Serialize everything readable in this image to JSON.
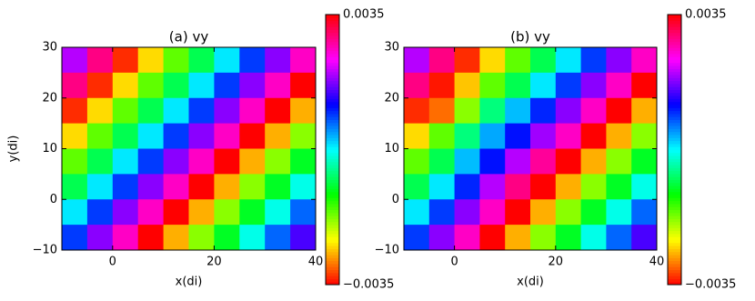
{
  "chart_data": [
    {
      "type": "heatmap",
      "title": "(a) vy",
      "xlabel": "x(di)",
      "ylabel": "y(di)",
      "x": [
        -7.5,
        -2.5,
        2.5,
        7.5,
        12.5,
        17.5,
        22.5,
        27.5,
        32.5,
        37.5
      ],
      "y": [
        27.5,
        22.5,
        17.5,
        12.5,
        7.5,
        2.5,
        -2.5,
        -7.5
      ],
      "values": [
        [
          0.002,
          0.0029,
          -0.0033,
          -0.0025,
          -0.0016,
          -0.0008,
          0.0001,
          0.0009,
          0.0018,
          0.0026
        ],
        [
          0.0029,
          -0.0033,
          -0.0025,
          -0.0016,
          -0.0008,
          0.0001,
          0.0009,
          0.0018,
          0.0026,
          0.0035
        ],
        [
          -0.0033,
          -0.0025,
          -0.0016,
          -0.0008,
          0.0001,
          0.0009,
          0.0018,
          0.0026,
          0.0035,
          -0.0027
        ],
        [
          -0.0025,
          -0.0016,
          -0.0008,
          0.0001,
          0.0009,
          0.0018,
          0.0026,
          0.0035,
          -0.0027,
          -0.0018
        ],
        [
          -0.0016,
          -0.0008,
          0.0001,
          0.0009,
          0.0018,
          0.0026,
          0.0035,
          -0.0027,
          -0.0018,
          -0.001
        ],
        [
          -0.0008,
          0.0001,
          0.0009,
          0.0018,
          0.0026,
          0.0035,
          -0.0027,
          -0.0018,
          -0.001,
          -0.0001
        ],
        [
          0.0001,
          0.0009,
          0.0018,
          0.0026,
          0.0035,
          -0.0027,
          -0.0018,
          -0.001,
          -0.0001,
          0.0007
        ],
        [
          0.0009,
          0.0018,
          0.0026,
          0.0035,
          -0.0027,
          -0.0018,
          -0.001,
          -0.0001,
          0.0007,
          0.0015
        ]
      ],
      "xlim": [
        -10,
        40
      ],
      "ylim": [
        -10,
        30
      ],
      "xticks": [
        0,
        20,
        40
      ],
      "yticks": [
        {
          "value": -10,
          "label": "−10"
        },
        0,
        10,
        20,
        30
      ],
      "clim": [
        -0.0035,
        0.0035
      ],
      "cticks": [
        {
          "value": -0.0035,
          "label": "−0.0035"
        },
        0.0035
      ],
      "colormap": "hsv"
    },
    {
      "type": "heatmap",
      "title": "(b) vy",
      "xlabel": "x(di)",
      "x": [
        -7.5,
        -2.5,
        2.5,
        7.5,
        12.5,
        17.5,
        22.5,
        27.5,
        32.5,
        37.5
      ],
      "y": [
        27.5,
        22.5,
        17.5,
        12.5,
        7.5,
        2.5,
        -2.5,
        -7.5
      ],
      "values": [
        [
          0.002,
          0.0029,
          -0.0033,
          -0.0025,
          -0.0016,
          -0.0008,
          0.0001,
          0.0009,
          0.0018,
          0.0026
        ],
        [
          0.0029,
          -0.0034,
          -0.0026,
          -0.0016,
          -0.0008,
          0.0001,
          0.0009,
          0.0018,
          0.0026,
          0.0035
        ],
        [
          -0.0033,
          -0.003,
          -0.0018,
          -0.0006,
          0.0003,
          0.001,
          0.0018,
          0.0026,
          0.0035,
          -0.0027
        ],
        [
          -0.0025,
          -0.0016,
          -0.0006,
          0.0004,
          0.0011,
          0.0019,
          0.0026,
          0.0035,
          -0.0027,
          -0.0018
        ],
        [
          -0.0016,
          -0.0008,
          0.0003,
          0.0011,
          0.002,
          0.0028,
          0.0035,
          -0.0027,
          -0.0018,
          -0.001
        ],
        [
          -0.0008,
          0.0001,
          0.001,
          0.002,
          0.0029,
          0.0035,
          -0.0027,
          -0.0018,
          -0.001,
          -0.0001
        ],
        [
          0.0001,
          0.0009,
          0.0018,
          0.0026,
          0.0035,
          -0.0027,
          -0.0018,
          -0.001,
          -0.0001,
          0.0007
        ],
        [
          0.0009,
          0.0018,
          0.0026,
          0.0035,
          -0.0027,
          -0.0018,
          -0.001,
          -0.0001,
          0.0007,
          0.0015
        ]
      ],
      "xlim": [
        -10,
        40
      ],
      "ylim": [
        -10,
        30
      ],
      "xticks": [
        0,
        20,
        40
      ],
      "yticks": [
        {
          "value": -10,
          "label": "−10"
        },
        0,
        10,
        20,
        30
      ],
      "clim": [
        -0.0035,
        0.0035
      ],
      "cticks": [
        {
          "value": -0.0035,
          "label": "−0.0035"
        },
        0.0035
      ],
      "colormap": "hsv"
    }
  ]
}
